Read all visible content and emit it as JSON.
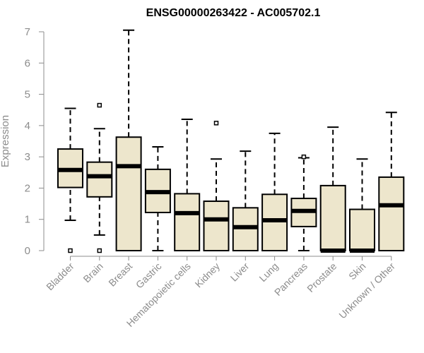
{
  "chart_data": {
    "type": "boxplot",
    "title": "ENSG00000263422 - AC005702.1",
    "xlabel": "",
    "ylabel": "Expression",
    "ylim": [
      0,
      7
    ],
    "yticks": [
      0,
      1,
      2,
      3,
      4,
      5,
      6,
      7
    ],
    "box_color": "#ede6cc",
    "categories": [
      "Bladder",
      "Brain",
      "Breast",
      "Gastric",
      "Hematopoietic cells",
      "Kidney",
      "Liver",
      "Lung",
      "Pancreas",
      "Prostate",
      "Skin",
      "Unknown / Other"
    ],
    "boxes": [
      {
        "category": "Bladder",
        "whisker_low": 0.97,
        "q1": 2.02,
        "median": 2.58,
        "q3": 3.25,
        "whisker_high": 4.55,
        "outliers": [
          0.0
        ]
      },
      {
        "category": "Brain",
        "whisker_low": 0.5,
        "q1": 1.72,
        "median": 2.38,
        "q3": 2.83,
        "whisker_high": 3.9,
        "outliers": [
          4.65,
          0.0
        ]
      },
      {
        "category": "Breast",
        "whisker_low": 0.0,
        "q1": 0.0,
        "median": 2.7,
        "q3": 3.63,
        "whisker_high": 7.05,
        "outliers": []
      },
      {
        "category": "Gastric",
        "whisker_low": 0.0,
        "q1": 1.22,
        "median": 1.87,
        "q3": 2.6,
        "whisker_high": 3.32,
        "outliers": []
      },
      {
        "category": "Hematopoietic cells",
        "whisker_low": 0.0,
        "q1": 0.0,
        "median": 1.2,
        "q3": 1.82,
        "whisker_high": 4.2,
        "outliers": []
      },
      {
        "category": "Kidney",
        "whisker_low": 0.0,
        "q1": 0.0,
        "median": 1.0,
        "q3": 1.58,
        "whisker_high": 2.93,
        "outliers": [
          4.08
        ]
      },
      {
        "category": "Liver",
        "whisker_low": 0.0,
        "q1": 0.0,
        "median": 0.75,
        "q3": 1.37,
        "whisker_high": 3.18,
        "outliers": []
      },
      {
        "category": "Lung",
        "whisker_low": 0.0,
        "q1": 0.0,
        "median": 0.97,
        "q3": 1.8,
        "whisker_high": 3.75,
        "outliers": []
      },
      {
        "category": "Pancreas",
        "whisker_low": 0.0,
        "q1": 0.77,
        "median": 1.27,
        "q3": 1.67,
        "whisker_high": 2.97,
        "outliers": [
          3.0
        ]
      },
      {
        "category": "Prostate",
        "whisker_low": 0.0,
        "q1": 0.0,
        "median": 0.0,
        "q3": 2.08,
        "whisker_high": 3.95,
        "outliers": []
      },
      {
        "category": "Skin",
        "whisker_low": 0.0,
        "q1": 0.0,
        "median": 0.0,
        "q3": 1.32,
        "whisker_high": 2.93,
        "outliers": []
      },
      {
        "category": "Unknown / Other",
        "whisker_low": 0.0,
        "q1": 0.0,
        "median": 1.45,
        "q3": 2.35,
        "whisker_high": 4.42,
        "outliers": []
      }
    ]
  }
}
